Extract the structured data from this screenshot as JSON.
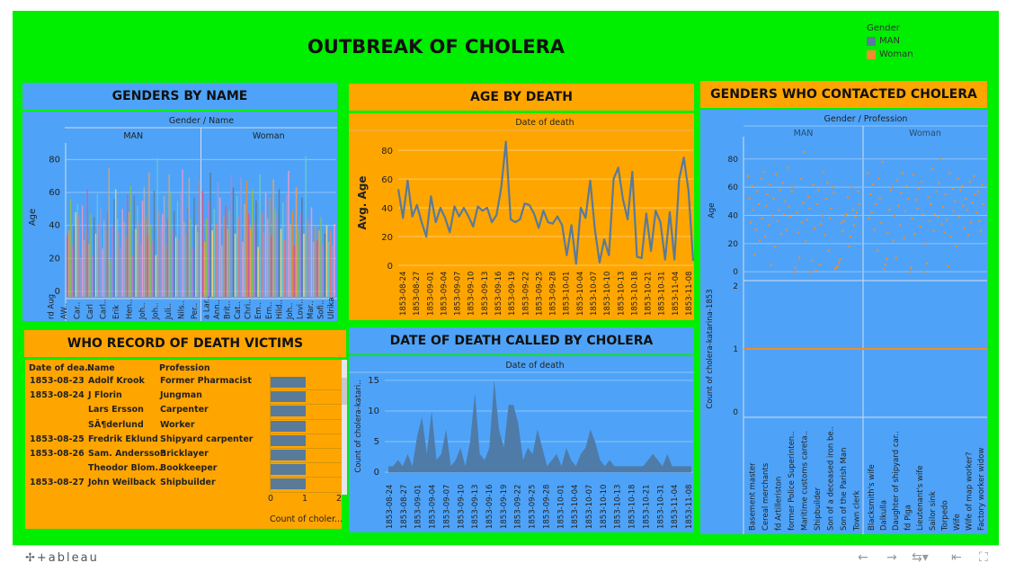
{
  "title": "OUTBREAK OF CHOLERA",
  "legend": {
    "title": "Gender",
    "items": [
      {
        "label": "MAN",
        "color": "#5a7a99"
      },
      {
        "label": "Woman",
        "color": "#f08c2c"
      }
    ]
  },
  "colors": {
    "background": "#00ee00",
    "blue": "#4ea3f8",
    "orange": "#ffa500",
    "line": "#5a7a99",
    "dot": "#f08c2c"
  },
  "panels": {
    "genders_by_name": "GENDERS BY NAME",
    "age_by_death": "AGE BY DEATH",
    "genders_contacted": "GENDERS WHO CONTACTED CHOLERA",
    "who_record": "WHO RECORD OF DEATH VICTIMS",
    "date_of_death": "DATE OF DEATH CALLED BY CHOLERA"
  },
  "chart_data": [
    {
      "id": "genders_by_name",
      "type": "bar",
      "header": "Gender / Name",
      "columns": [
        "MAN",
        "Woman"
      ],
      "ylabel": "Age",
      "ylim": [
        0,
        90
      ],
      "yticks": [
        0,
        20,
        40,
        60,
        80
      ],
      "man_name_labels": [
        "rd Aug",
        "AW..",
        "Car..",
        "Carl",
        "Carl..",
        "Erik",
        "Hen..",
        "Joh..",
        "Joh..",
        "Juli..",
        "Nils..",
        "Per.."
      ],
      "woman_name_labels": [
        "a Lar..",
        "Ann..",
        "Brit..",
        "Cat..",
        "Chri..",
        "Em..",
        "Ern..",
        "Hild..",
        "Joh..",
        "Lovi..",
        "Mar..",
        "Sofi..",
        "Ulrika"
      ],
      "man_values": [
        34,
        37,
        56,
        28,
        40,
        48,
        53,
        46,
        20,
        52,
        31,
        38,
        62,
        29,
        47,
        22,
        45,
        35,
        59,
        41,
        51,
        26,
        43,
        37,
        48,
        75,
        19,
        40,
        56,
        62,
        44,
        36,
        27,
        50,
        42,
        33,
        59,
        48,
        64,
        22,
        58,
        38,
        52,
        42,
        29,
        55,
        63,
        45,
        34,
        72,
        40,
        30,
        61,
        22,
        81,
        49,
        39,
        47,
        58,
        28,
        44,
        71,
        60,
        38,
        49,
        33,
        55,
        32,
        60,
        74,
        42,
        35,
        51,
        69,
        44,
        27,
        57,
        40,
        36,
        67
      ],
      "woman_values": [
        61,
        30,
        44,
        55,
        72,
        37,
        50,
        41,
        66,
        57,
        28,
        46,
        52,
        38,
        49,
        71,
        63,
        35,
        58,
        45,
        69,
        30,
        53,
        67,
        47,
        39,
        62,
        42,
        55,
        27,
        71,
        48,
        36,
        60,
        44,
        57,
        34,
        68,
        50,
        46,
        62,
        38,
        54,
        31,
        59,
        73,
        41,
        49,
        28,
        63,
        38,
        47,
        57,
        35,
        82,
        44,
        39,
        51,
        30,
        40,
        31,
        37,
        45,
        29,
        35,
        40,
        30,
        37,
        28,
        41
      ]
    },
    {
      "id": "age_by_death",
      "type": "line",
      "header": "Date of death",
      "ylabel": "Avg. Age",
      "ylim": [
        -5,
        92
      ],
      "yticks": [
        0,
        20,
        40,
        60,
        80
      ],
      "x_labels": [
        "1853-08-24",
        "1853-08-27",
        "1853-09-01",
        "1853-09-04",
        "1853-09-07",
        "1853-09-10",
        "1853-09-13",
        "1853-09-16",
        "1853-09-19",
        "1853-09-22",
        "1853-09-25",
        "1853-09-28",
        "1853-10-01",
        "1853-10-04",
        "1853-10-07",
        "1853-10-10",
        "1853-10-13",
        "1853-10-18",
        "1853-10-21",
        "1853-10-31",
        "1853-11-04",
        "1853-11-08"
      ],
      "values": [
        53,
        33,
        59,
        34,
        42,
        30,
        20,
        48,
        30,
        40,
        33,
        23,
        41,
        34,
        40,
        34,
        27,
        41,
        38,
        40,
        30,
        35,
        54,
        86,
        32,
        30,
        32,
        43,
        42,
        36,
        26,
        38,
        30,
        29,
        34,
        28,
        7,
        28,
        1,
        40,
        33,
        59,
        25,
        2,
        18,
        7,
        60,
        68,
        46,
        32,
        65,
        6,
        5,
        36,
        10,
        38,
        30,
        4,
        37,
        4,
        60,
        75,
        52,
        3
      ]
    },
    {
      "id": "genders_contacted",
      "type": "scatter",
      "header": "Gender / Profession",
      "columns": [
        "MAN",
        "Woman"
      ],
      "ylabel_top": "Age",
      "ylim_top": [
        -5,
        92
      ],
      "yticks_top": [
        0,
        20,
        40,
        60,
        80
      ],
      "ylabel_bottom": "Count of cholera-katarina-1853",
      "ylim_bottom": [
        0,
        2
      ],
      "yticks_bottom": [
        0,
        1,
        2
      ],
      "bottom_value": 1,
      "professions_man": [
        "Basement master",
        "Cereal merchants",
        "fd Artilleriston",
        "former Police Superinten..",
        "Maritime customs careta..",
        "Shipbuilder",
        "Son of a deceased iron be..",
        "Son of the Parish Man",
        "Town clerk"
      ],
      "professions_woman": [
        "Blacksmith's wife",
        "Dalkulla",
        "Daughter of shipyard car..",
        "fd Piga",
        "Lieutenant's wife",
        "Sailor sink",
        "Torpedo",
        "Wife",
        "Wife of map worker?",
        "Factory worker widow"
      ],
      "man_ages": [
        68,
        52,
        35,
        61,
        44,
        12,
        30,
        57,
        48,
        22,
        66,
        38,
        71,
        25,
        47,
        55,
        33,
        62,
        5,
        40,
        52,
        18,
        69,
        36,
        44,
        58,
        27,
        63,
        41,
        50,
        30,
        74,
        46,
        39,
        57,
        60,
        0,
        3,
        42,
        28,
        10,
        66,
        35,
        49,
        85,
        22,
        37,
        53,
        45,
        0,
        8,
        62,
        31,
        1,
        48,
        58,
        5,
        34,
        40,
        71,
        26,
        52,
        63,
        15,
        38,
        45,
        60,
        56,
        2,
        3,
        4,
        7,
        9,
        35,
        29,
        36,
        40,
        41,
        53,
        18,
        25,
        60,
        44,
        33,
        39,
        42,
        57,
        48
      ],
      "woman_ages": [
        70,
        38,
        55,
        42,
        62,
        30,
        48,
        15,
        66,
        52,
        35,
        78,
        2,
        5,
        9,
        28,
        44,
        58,
        60,
        22,
        40,
        10,
        65,
        47,
        33,
        56,
        70,
        24,
        43,
        61,
        52,
        0,
        3,
        38,
        69,
        27,
        51,
        45,
        59,
        32,
        64,
        41,
        0,
        20,
        6,
        53,
        36,
        48,
        73,
        29,
        41,
        57,
        39,
        63,
        80,
        34,
        46,
        28,
        55,
        37,
        4,
        70,
        25,
        59,
        43,
        50,
        18,
        66,
        39,
        58,
        61,
        47,
        31,
        52,
        44,
        26,
        64,
        35,
        49,
        68,
        55,
        42,
        57,
        36,
        29,
        62,
        48
      ]
    },
    {
      "id": "who_record",
      "type": "table",
      "columns": [
        "Date of dea..",
        "Name",
        "Profession"
      ],
      "rows": [
        {
          "date": "1853-08-23",
          "name": "Adolf Krook",
          "profession": "Former Pharmacist",
          "count": 1
        },
        {
          "date": "1853-08-24",
          "name": "J Florin",
          "profession": "Jungman",
          "count": 1
        },
        {
          "date": "",
          "name": "Lars Ersson",
          "profession": "Carpenter",
          "count": 1
        },
        {
          "date": "",
          "name": "SÃ¶derlund",
          "profession": "Worker",
          "count": 1
        },
        {
          "date": "1853-08-25",
          "name": "Fredrik Eklund",
          "profession": "Shipyard carpenter",
          "count": 1
        },
        {
          "date": "1853-08-26",
          "name": "Sam. Andersson",
          "profession": "Bricklayer",
          "count": 1
        },
        {
          "date": "",
          "name": "Theodor Blom..",
          "profession": "Bookkeeper",
          "count": 1
        },
        {
          "date": "1853-08-27",
          "name": "John Weilback",
          "profession": "Shipbuilder",
          "count": 1
        }
      ],
      "xticks": [
        "0",
        "1",
        "2"
      ],
      "xlabel": "Count of choler..."
    },
    {
      "id": "date_of_death",
      "type": "area",
      "header": "Date of death",
      "ylabel": "Count of cholera-katari..",
      "ylim": [
        -1,
        16
      ],
      "yticks": [
        0,
        5,
        10,
        15
      ],
      "x_labels": [
        "1853-08-24",
        "1853-08-27",
        "1853-09-01",
        "1853-09-04",
        "1853-09-07",
        "1853-09-10",
        "1853-09-13",
        "1853-09-16",
        "1853-09-19",
        "1853-09-22",
        "1853-09-25",
        "1853-09-28",
        "1853-10-01",
        "1853-10-04",
        "1853-10-07",
        "1853-10-10",
        "1853-10-13",
        "1853-10-18",
        "1853-10-21",
        "1853-10-31",
        "1853-11-04",
        "1853-11-08"
      ],
      "values": [
        1,
        1,
        2,
        1,
        3,
        1,
        6,
        9,
        3,
        10,
        2,
        3,
        7,
        1,
        2,
        4,
        1,
        5,
        13,
        3,
        2,
        4,
        15,
        7,
        4,
        11,
        11,
        8,
        2,
        4,
        3,
        7,
        4,
        1,
        2,
        3,
        1,
        4,
        2,
        1,
        3,
        4,
        7,
        5,
        2,
        1,
        2,
        1,
        1,
        1,
        1,
        1,
        1,
        1,
        2,
        3,
        2,
        1,
        3,
        1,
        1,
        1,
        1,
        1
      ]
    }
  ],
  "footer": {
    "logo": "+ableau"
  }
}
